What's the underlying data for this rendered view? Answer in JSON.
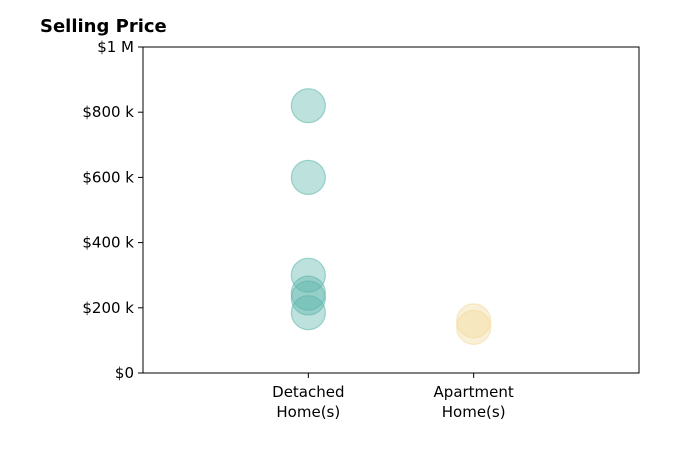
{
  "chart_data": {
    "type": "scatter",
    "title": "Selling Price",
    "xlabel": "",
    "ylabel": "",
    "categories": [
      "Detached\nHome(s)",
      "Apartment\nHome(s)"
    ],
    "x_domain": [
      0,
      3
    ],
    "category_positions": [
      1,
      2
    ],
    "ylim": [
      0,
      1000000
    ],
    "y_ticks": [
      {
        "value": 0,
        "label": "$0"
      },
      {
        "value": 200000,
        "label": "$200 k"
      },
      {
        "value": 400000,
        "label": "$400 k"
      },
      {
        "value": 600000,
        "label": "$600 k"
      },
      {
        "value": 800000,
        "label": "$800 k"
      },
      {
        "value": 1000000,
        "label": "$1 M"
      }
    ],
    "grid": false,
    "series": [
      {
        "category": "Detached\nHome(s)",
        "color": "#5bb5aa",
        "values": [
          820000,
          600000,
          300000,
          245000,
          230000,
          185000
        ]
      },
      {
        "category": "Apartment\nHome(s)",
        "color": "#f2d99b",
        "values": [
          160000,
          140000
        ]
      }
    ]
  }
}
